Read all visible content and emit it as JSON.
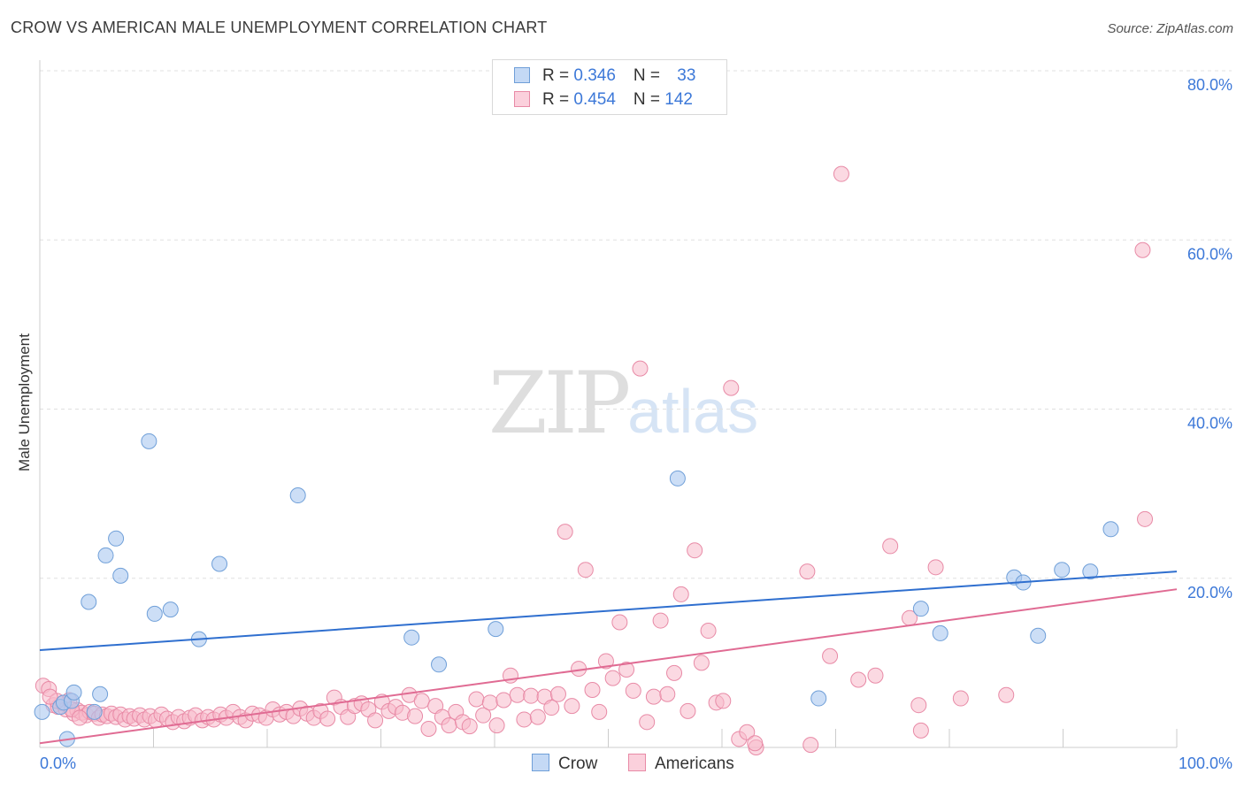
{
  "title": "CROW VS AMERICAN MALE UNEMPLOYMENT CORRELATION CHART",
  "source": "Source: ZipAtlas.com",
  "watermark": {
    "zip": "ZIP",
    "atlas": "atlas"
  },
  "legend_top": [
    {
      "r_label": "R = ",
      "r_value": "0.346",
      "n_label": "N = ",
      "n_value": "33",
      "color": "#aac8f0"
    },
    {
      "r_label": "R = ",
      "r_value": "0.454",
      "n_label": "N = ",
      "n_value": "142",
      "color": "#f7b9cb"
    }
  ],
  "legend_bottom": [
    {
      "label": "Crow",
      "color": "#aac8f0"
    },
    {
      "label": "Americans",
      "color": "#f7b9cb"
    }
  ],
  "chart_data": {
    "type": "scatter",
    "title": "CROW VS AMERICAN MALE UNEMPLOYMENT CORRELATION CHART",
    "xlabel": "",
    "ylabel": "Male Unemployment",
    "xlim": [
      0,
      100
    ],
    "ylim": [
      0,
      80
    ],
    "x_tick_labels": [
      "0.0%",
      "100.0%"
    ],
    "y_ticks": [
      20,
      40,
      60,
      80
    ],
    "y_tick_labels": [
      "20.0%",
      "40.0%",
      "60.0%",
      "80.0%"
    ],
    "grid": true,
    "colors": {
      "crow_fill": "#aac8f0",
      "crow_stroke": "#6f9fd8",
      "crow_line": "#2f6fcf",
      "am_fill": "#f7b9cb",
      "am_stroke": "#e88aa6",
      "am_line": "#e06b93",
      "tick_label": "#3c78d8",
      "grid": "#e0e0e0"
    },
    "series": [
      {
        "name": "Crow",
        "r": 0.346,
        "n": 33,
        "trend": {
          "x": [
            0,
            100
          ],
          "y": [
            11.5,
            20.8
          ]
        },
        "points": [
          [
            0.2,
            4.2
          ],
          [
            1.8,
            4.8
          ],
          [
            2.1,
            5.3
          ],
          [
            2.4,
            1.0
          ],
          [
            2.8,
            5.5
          ],
          [
            3.0,
            6.5
          ],
          [
            4.8,
            4.2
          ],
          [
            5.3,
            6.3
          ],
          [
            4.3,
            17.2
          ],
          [
            5.8,
            22.7
          ],
          [
            6.7,
            24.7
          ],
          [
            7.1,
            20.3
          ],
          [
            9.6,
            36.2
          ],
          [
            10.1,
            15.8
          ],
          [
            11.5,
            16.3
          ],
          [
            14.0,
            12.8
          ],
          [
            15.8,
            21.7
          ],
          [
            22.7,
            29.8
          ],
          [
            32.7,
            13.0
          ],
          [
            35.1,
            9.8
          ],
          [
            40.1,
            14.0
          ],
          [
            56.1,
            31.8
          ],
          [
            68.5,
            5.8
          ],
          [
            77.5,
            16.4
          ],
          [
            79.2,
            13.5
          ],
          [
            85.7,
            20.1
          ],
          [
            86.5,
            19.5
          ],
          [
            87.8,
            13.2
          ],
          [
            89.9,
            21.0
          ],
          [
            92.4,
            20.8
          ],
          [
            94.2,
            25.8
          ]
        ]
      },
      {
        "name": "Americans",
        "r": 0.454,
        "n": 142,
        "trend": {
          "x": [
            0,
            100
          ],
          "y": [
            0.5,
            18.7
          ]
        },
        "points": [
          [
            0.3,
            7.3
          ],
          [
            0.8,
            6.9
          ],
          [
            1.2,
            5.0
          ],
          [
            1.6,
            4.8
          ],
          [
            2.0,
            5.2
          ],
          [
            2.3,
            4.5
          ],
          [
            2.6,
            5.6
          ],
          [
            3.0,
            4.0
          ],
          [
            3.3,
            4.4
          ],
          [
            3.7,
            4.1
          ],
          [
            4.1,
            3.8
          ],
          [
            4.4,
            4.2
          ],
          [
            4.8,
            4.0
          ],
          [
            5.2,
            3.5
          ],
          [
            5.5,
            3.9
          ],
          [
            5.9,
            3.7
          ],
          [
            6.3,
            4.0
          ],
          [
            6.7,
            3.6
          ],
          [
            7.1,
            3.9
          ],
          [
            7.5,
            3.3
          ],
          [
            7.9,
            3.7
          ],
          [
            8.3,
            3.4
          ],
          [
            8.8,
            3.8
          ],
          [
            9.2,
            3.3
          ],
          [
            9.7,
            3.7
          ],
          [
            10.2,
            3.2
          ],
          [
            10.7,
            3.9
          ],
          [
            11.2,
            3.4
          ],
          [
            11.7,
            3.0
          ],
          [
            12.2,
            3.6
          ],
          [
            12.7,
            3.1
          ],
          [
            13.2,
            3.5
          ],
          [
            13.7,
            3.8
          ],
          [
            14.3,
            3.2
          ],
          [
            14.8,
            3.6
          ],
          [
            15.3,
            3.3
          ],
          [
            15.9,
            3.9
          ],
          [
            16.4,
            3.5
          ],
          [
            17.0,
            4.2
          ],
          [
            17.6,
            3.6
          ],
          [
            18.1,
            3.2
          ],
          [
            18.7,
            4.0
          ],
          [
            19.3,
            3.8
          ],
          [
            19.9,
            3.5
          ],
          [
            20.5,
            4.5
          ],
          [
            21.1,
            3.9
          ],
          [
            21.7,
            4.2
          ],
          [
            22.3,
            3.7
          ],
          [
            22.9,
            4.6
          ],
          [
            23.5,
            4.0
          ],
          [
            24.1,
            3.5
          ],
          [
            24.7,
            4.3
          ],
          [
            25.3,
            3.4
          ],
          [
            25.9,
            5.9
          ],
          [
            26.5,
            4.8
          ],
          [
            27.1,
            3.6
          ],
          [
            27.7,
            4.9
          ],
          [
            28.3,
            5.2
          ],
          [
            28.9,
            4.5
          ],
          [
            29.5,
            3.2
          ],
          [
            30.1,
            5.4
          ],
          [
            30.7,
            4.3
          ],
          [
            31.3,
            4.8
          ],
          [
            31.9,
            4.1
          ],
          [
            32.5,
            6.2
          ],
          [
            33.0,
            3.7
          ],
          [
            33.6,
            5.5
          ],
          [
            34.2,
            2.2
          ],
          [
            34.8,
            4.9
          ],
          [
            35.4,
            3.6
          ],
          [
            36.0,
            2.6
          ],
          [
            36.6,
            4.2
          ],
          [
            37.2,
            3.0
          ],
          [
            37.8,
            2.5
          ],
          [
            38.4,
            5.7
          ],
          [
            39.0,
            3.8
          ],
          [
            39.6,
            5.3
          ],
          [
            40.2,
            2.6
          ],
          [
            40.8,
            5.6
          ],
          [
            41.4,
            8.5
          ],
          [
            42.0,
            6.2
          ],
          [
            42.6,
            3.3
          ],
          [
            43.2,
            6.1
          ],
          [
            43.8,
            3.6
          ],
          [
            44.4,
            6.0
          ],
          [
            45.0,
            4.7
          ],
          [
            45.6,
            6.3
          ],
          [
            46.2,
            25.5
          ],
          [
            46.8,
            4.9
          ],
          [
            47.4,
            9.3
          ],
          [
            48.0,
            21.0
          ],
          [
            48.6,
            6.8
          ],
          [
            49.2,
            4.2
          ],
          [
            49.8,
            10.2
          ],
          [
            50.4,
            8.2
          ],
          [
            51.0,
            14.8
          ],
          [
            51.6,
            9.2
          ],
          [
            52.2,
            6.7
          ],
          [
            52.8,
            44.8
          ],
          [
            53.4,
            3.0
          ],
          [
            54.0,
            6.0
          ],
          [
            54.6,
            15.0
          ],
          [
            55.2,
            6.3
          ],
          [
            55.8,
            8.8
          ],
          [
            56.4,
            18.1
          ],
          [
            57.0,
            4.3
          ],
          [
            57.6,
            23.3
          ],
          [
            58.2,
            10.0
          ],
          [
            58.8,
            13.8
          ],
          [
            59.5,
            5.3
          ],
          [
            60.1,
            5.5
          ],
          [
            60.8,
            42.5
          ],
          [
            61.5,
            1.0
          ],
          [
            62.2,
            1.8
          ],
          [
            63.0,
            0.0
          ],
          [
            67.5,
            20.8
          ],
          [
            67.8,
            0.3
          ],
          [
            69.5,
            10.8
          ],
          [
            70.5,
            67.8
          ],
          [
            72.0,
            8.0
          ],
          [
            73.5,
            8.5
          ],
          [
            74.8,
            23.8
          ],
          [
            76.5,
            15.3
          ],
          [
            77.5,
            2.0
          ],
          [
            78.8,
            21.3
          ],
          [
            81.0,
            5.8
          ],
          [
            85.0,
            6.2
          ],
          [
            97.0,
            58.8
          ],
          [
            97.2,
            27.0
          ],
          [
            77.3,
            5.0
          ],
          [
            1.5,
            5.5
          ],
          [
            2.8,
            4.5
          ],
          [
            3.5,
            3.5
          ],
          [
            0.9,
            6.0
          ],
          [
            62.9,
            0.5
          ]
        ]
      }
    ]
  }
}
